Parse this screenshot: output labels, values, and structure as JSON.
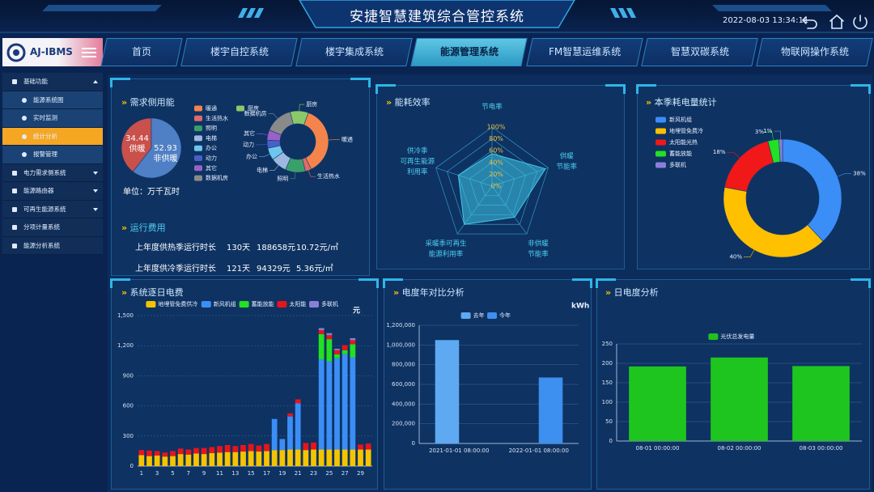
{
  "header": {
    "title": "安捷智慧建筑综合管控系统",
    "datetime": "2022-08-03 13:34:11",
    "logo": "AJ-IBMS"
  },
  "nav": {
    "items": [
      "首页",
      "楼宇自控系统",
      "楼宇集成系统",
      "能源管理系统",
      "FM智慧运维系统",
      "智慧双碳系统",
      "物联网操作系统"
    ]
  },
  "sidebar": {
    "items": [
      {
        "label": "基础功能",
        "children": [
          "能源系统图",
          "实时监测",
          "统计分析",
          "报警管理"
        ]
      },
      {
        "label": "电力需求侧系统"
      },
      {
        "label": "能源路由器"
      },
      {
        "label": "可再生能源系统"
      },
      {
        "label": "分项计量系统"
      },
      {
        "label": "能源分析系统"
      }
    ]
  },
  "running_cost": {
    "title": "运行费用",
    "rows": [
      [
        "上年度供热季运行时长",
        "130天",
        "188658元",
        "10.72元/㎡"
      ],
      [
        "上年度供冷季运行时长",
        "121天",
        "94329元",
        "5.36元/㎡"
      ]
    ]
  },
  "chart_data": [
    {
      "type": "pie",
      "title": "需求侧用能",
      "unit": "单位：万千瓦时",
      "categories": [
        "供暖",
        "非供暖"
      ],
      "values": [
        34.44,
        52.93
      ],
      "colors": [
        "#c9504b",
        "#4f7fc4"
      ]
    },
    {
      "type": "pie",
      "donut": true,
      "categories": [
        "暖通",
        "生活热水",
        "照明",
        "电梯",
        "办公",
        "动力",
        "其它",
        "数据机房",
        "厨房"
      ],
      "values": [
        35,
        3,
        10,
        8,
        6,
        4,
        5,
        14,
        9
      ],
      "colors": [
        "#f5844c",
        "#e06a6a",
        "#3aa06a",
        "#9db8e0",
        "#6fc6ec",
        "#4a5fc8",
        "#9a62c8",
        "#8a8a8a",
        "#8ac86a"
      ]
    },
    {
      "type": "radar",
      "title": "能耗效率",
      "categories": [
        "节电率",
        "供暖\n节能率",
        "非供暖\n节能率",
        "采暖季可再生\n能源利用率",
        "供冷季\n可再生能源\n利用率"
      ],
      "values": [
        55,
        95,
        65,
        80,
        60
      ],
      "ylim": [
        0,
        100
      ],
      "yticks": [
        {
          "value": 0,
          "label": "0%"
        },
        {
          "value": 20,
          "label": "20%"
        },
        {
          "value": 40,
          "label": "40%"
        },
        {
          "value": 60,
          "label": "60%"
        },
        {
          "value": 80,
          "label": "80%"
        },
        {
          "value": 100,
          "label": "100%"
        }
      ],
      "color": "#3fc8e8"
    },
    {
      "type": "pie",
      "donut": true,
      "title": "本季耗电量统计",
      "categories": [
        "新风机组",
        "地埋管免费冷",
        "太阳能光热",
        "蓄能放能",
        "多联机"
      ],
      "values": [
        38,
        40,
        18,
        3,
        1
      ],
      "value_labels": [
        "38%",
        "40%",
        "18%",
        "3%",
        "1%"
      ],
      "colors": [
        "#3a8ef6",
        "#ffc000",
        "#f01818",
        "#22e022",
        "#8a7fd8"
      ]
    },
    {
      "type": "bar",
      "stacked": true,
      "title": "系统逐日电费",
      "unit": "元",
      "categories": [
        "1",
        null,
        "3",
        null,
        "5",
        null,
        "7",
        null,
        "9",
        null,
        "11",
        null,
        "13",
        null,
        "15",
        null,
        "17",
        null,
        "19",
        null,
        "21",
        null,
        "23",
        null,
        "25",
        null,
        "27",
        null,
        "29",
        null
      ],
      "series": [
        {
          "name": "地埋管免费供冷",
          "color": "#f5c400",
          "values": [
            110,
            100,
            105,
            95,
            100,
            120,
            115,
            125,
            120,
            130,
            135,
            140,
            140,
            145,
            150,
            145,
            150,
            160,
            160,
            165,
            165,
            160,
            165,
            165,
            165,
            165,
            165,
            165,
            165,
            165
          ]
        },
        {
          "name": "新风机组",
          "color": "#3a8ef6",
          "values": [
            0,
            0,
            0,
            0,
            0,
            0,
            0,
            0,
            0,
            0,
            0,
            0,
            0,
            0,
            0,
            0,
            0,
            310,
            110,
            330,
            460,
            0,
            0,
            900,
            880,
            910,
            950,
            920,
            0,
            0
          ]
        },
        {
          "name": "蓄能放能",
          "color": "#22e022",
          "values": [
            0,
            0,
            0,
            0,
            0,
            0,
            0,
            0,
            0,
            0,
            0,
            0,
            0,
            0,
            0,
            0,
            0,
            0,
            0,
            0,
            0,
            0,
            0,
            250,
            220,
            40,
            40,
            130,
            0,
            0
          ]
        },
        {
          "name": "太阳能",
          "color": "#e8141c",
          "values": [
            50,
            55,
            45,
            40,
            50,
            55,
            50,
            55,
            60,
            60,
            65,
            70,
            60,
            65,
            70,
            60,
            70,
            0,
            0,
            30,
            40,
            70,
            70,
            40,
            40,
            40,
            50,
            40,
            50,
            60
          ]
        },
        {
          "name": "多联机",
          "color": "#8a7fd8",
          "values": [
            0,
            0,
            0,
            0,
            0,
            0,
            0,
            0,
            0,
            0,
            0,
            0,
            0,
            0,
            0,
            0,
            0,
            0,
            0,
            0,
            0,
            0,
            0,
            20,
            20,
            15,
            0,
            20,
            0,
            0
          ]
        }
      ],
      "ylim": [
        0,
        1500
      ],
      "yticks": [
        0,
        300,
        600,
        900,
        {
          "value": 1200,
          "label": "1,200"
        },
        {
          "value": 1500,
          "label": "1,500"
        }
      ],
      "grid": true
    },
    {
      "type": "bar",
      "title": "电度年对比分析",
      "unit": "kWh",
      "categories": [
        "2021-01-01 08:00:00",
        "2022-01-01 08:00:00"
      ],
      "series": [
        {
          "name": "去年",
          "color": "#5ea9f2",
          "values": [
            1050000,
            null
          ]
        },
        {
          "name": "今年",
          "color": "#3d8ff0",
          "values": [
            null,
            670000
          ]
        }
      ],
      "ylim": [
        0,
        1200000
      ],
      "yticks": [
        0,
        {
          "value": 200000,
          "label": "200,000"
        },
        {
          "value": 400000,
          "label": "400,000"
        },
        {
          "value": 600000,
          "label": "600,000"
        },
        {
          "value": 800000,
          "label": "800,000"
        },
        {
          "value": 1000000,
          "label": "1,000,000"
        },
        {
          "value": 1200000,
          "label": "1,200,000"
        }
      ],
      "grid": true
    },
    {
      "type": "bar",
      "title": "日电度分析",
      "categories": [
        "08-01 00:00:00",
        "08-02 00:00:00",
        "08-03 00:00:00"
      ],
      "series": [
        {
          "name": "光伏总发电量",
          "color": "#1ec51e",
          "values": [
            192,
            215,
            193
          ]
        }
      ],
      "ylim": [
        0,
        250
      ],
      "yticks": [
        0,
        50,
        100,
        150,
        200,
        250
      ],
      "grid": true
    }
  ]
}
